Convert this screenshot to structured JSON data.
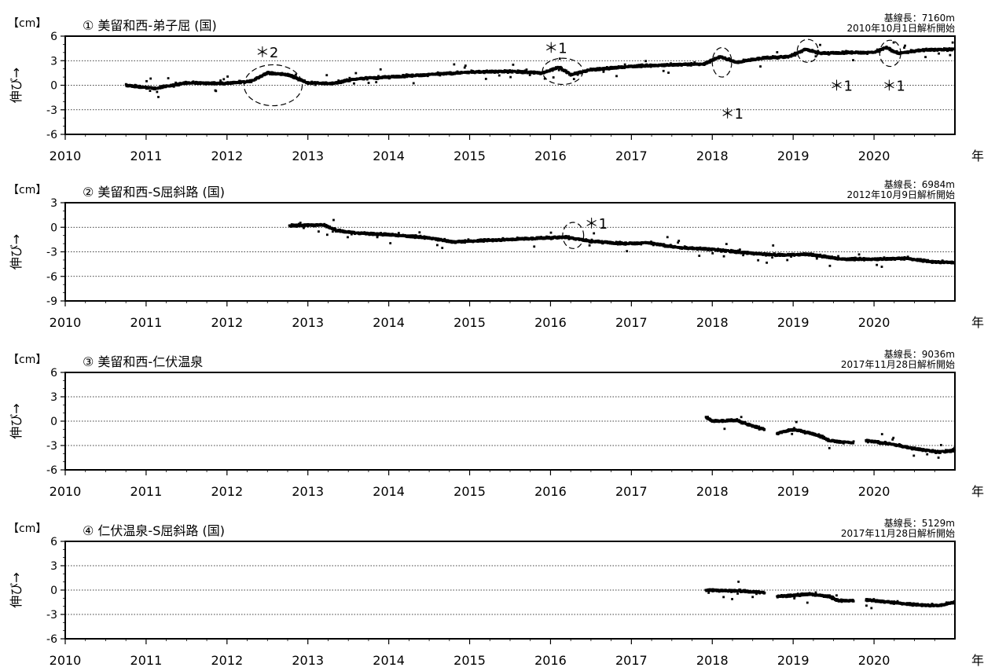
{
  "chart_data": [
    {
      "type": "scatter",
      "title": "① 美留和西-弟子屈 (国)",
      "unit": "【cm】",
      "ylabel": "伸び→",
      "xlabel": "年",
      "baseline": "基線長：7160m",
      "start": "2010年10月1日解析開始",
      "xlim": [
        2010,
        2021
      ],
      "ylim": [
        -6,
        6
      ],
      "yticks": [
        -6,
        -3,
        0,
        3,
        6
      ],
      "xticks": [
        2010,
        2011,
        2012,
        2013,
        2014,
        2015,
        2016,
        2017,
        2018,
        2019,
        2020
      ],
      "grid": [
        -3,
        0,
        3
      ],
      "series_trend": [
        [
          2010.75,
          0.0
        ],
        [
          2011.1,
          -0.4
        ],
        [
          2011.5,
          0.3
        ],
        [
          2012.0,
          0.2
        ],
        [
          2012.3,
          0.5
        ],
        [
          2012.5,
          1.5
        ],
        [
          2012.75,
          1.3
        ],
        [
          2013.0,
          0.3
        ],
        [
          2013.3,
          0.2
        ],
        [
          2013.6,
          0.8
        ],
        [
          2014.0,
          1.0
        ],
        [
          2014.5,
          1.3
        ],
        [
          2015.0,
          1.6
        ],
        [
          2015.5,
          1.7
        ],
        [
          2015.9,
          1.5
        ],
        [
          2016.1,
          2.2
        ],
        [
          2016.25,
          1.3
        ],
        [
          2016.5,
          1.9
        ],
        [
          2017.0,
          2.3
        ],
        [
          2017.5,
          2.5
        ],
        [
          2017.9,
          2.6
        ],
        [
          2018.1,
          3.5
        ],
        [
          2018.3,
          2.8
        ],
        [
          2018.6,
          3.3
        ],
        [
          2018.95,
          3.5
        ],
        [
          2019.15,
          4.4
        ],
        [
          2019.35,
          3.9
        ],
        [
          2019.7,
          4.0
        ],
        [
          2020.0,
          4.0
        ],
        [
          2020.15,
          4.6
        ],
        [
          2020.3,
          3.9
        ],
        [
          2020.6,
          4.3
        ],
        [
          2021.0,
          4.4
        ]
      ],
      "annotations": [
        {
          "text": "＊2",
          "x": 2012.35,
          "y": 4.0
        },
        {
          "text": "＊1",
          "x": 2015.92,
          "y": 4.5
        },
        {
          "text": "＊1",
          "x": 2018.1,
          "y": -3.5
        },
        {
          "text": "＊1",
          "x": 2019.45,
          "y": -0.1
        },
        {
          "text": "＊1",
          "x": 2020.1,
          "y": -0.1
        }
      ],
      "ellipses": [
        {
          "x": 2012.57,
          "y": 0.0,
          "rx": 0.36,
          "ry": 2.5
        },
        {
          "x": 2016.15,
          "y": 1.7,
          "rx": 0.25,
          "ry": 1.6
        },
        {
          "x": 2018.12,
          "y": 2.8,
          "rx": 0.12,
          "ry": 1.8
        },
        {
          "x": 2019.18,
          "y": 4.2,
          "rx": 0.13,
          "ry": 1.4
        },
        {
          "x": 2020.2,
          "y": 3.9,
          "rx": 0.13,
          "ry": 1.6
        }
      ]
    },
    {
      "type": "scatter",
      "title": "② 美留和西-S屈斜路 (国)",
      "unit": "【cm】",
      "ylabel": "伸び→",
      "xlabel": "年",
      "baseline": "基線長：6984m",
      "start": "2012年10月9日解析開始",
      "xlim": [
        2010,
        2021
      ],
      "ylim": [
        -9,
        3
      ],
      "yticks": [
        -9,
        -6,
        -3,
        0,
        3
      ],
      "xticks": [
        2010,
        2011,
        2012,
        2013,
        2014,
        2015,
        2016,
        2017,
        2018,
        2019,
        2020
      ],
      "grid": [
        -6,
        -3,
        0
      ],
      "series_trend": [
        [
          2012.77,
          0.2
        ],
        [
          2013.2,
          0.3
        ],
        [
          2013.35,
          -0.4
        ],
        [
          2013.6,
          -0.7
        ],
        [
          2014.0,
          -0.9
        ],
        [
          2014.5,
          -1.3
        ],
        [
          2014.8,
          -1.8
        ],
        [
          2015.2,
          -1.6
        ],
        [
          2015.7,
          -1.4
        ],
        [
          2016.2,
          -1.2
        ],
        [
          2016.5,
          -1.7
        ],
        [
          2016.9,
          -2.0
        ],
        [
          2017.2,
          -1.9
        ],
        [
          2017.6,
          -2.5
        ],
        [
          2018.0,
          -2.7
        ],
        [
          2018.4,
          -3.1
        ],
        [
          2018.8,
          -3.4
        ],
        [
          2019.2,
          -3.3
        ],
        [
          2019.6,
          -3.9
        ],
        [
          2020.0,
          -3.9
        ],
        [
          2020.4,
          -3.8
        ],
        [
          2020.7,
          -4.2
        ],
        [
          2021.0,
          -4.3
        ]
      ],
      "annotations": [
        {
          "text": "＊1",
          "x": 2016.42,
          "y": 0.4
        }
      ],
      "ellipses": [
        {
          "x": 2016.28,
          "y": -1.0,
          "rx": 0.13,
          "ry": 1.6
        }
      ]
    },
    {
      "type": "scatter",
      "title": "③ 美留和西-仁伏温泉",
      "unit": "【cm】",
      "ylabel": "伸び→",
      "xlabel": "年",
      "baseline": "基線長：9036m",
      "start": "2017年11月28日解析開始",
      "xlim": [
        2010,
        2021
      ],
      "ylim": [
        -6,
        6
      ],
      "yticks": [
        -6,
        -3,
        0,
        3,
        6
      ],
      "xticks": [
        2010,
        2011,
        2012,
        2013,
        2014,
        2015,
        2016,
        2017,
        2018,
        2019,
        2020
      ],
      "grid": [
        -3,
        0,
        3
      ],
      "series_trend": [
        [
          2017.92,
          0.5
        ],
        [
          2018.0,
          0.0
        ],
        [
          2018.3,
          0.1
        ],
        [
          2018.5,
          -0.6
        ],
        [
          2018.65,
          -1.0
        ],
        [
          2018.75,
          null
        ],
        [
          2018.8,
          -1.5
        ],
        [
          2019.0,
          -1.0
        ],
        [
          2019.3,
          -1.7
        ],
        [
          2019.45,
          -2.4
        ],
        [
          2019.75,
          -2.7
        ],
        [
          2019.8,
          null
        ],
        [
          2019.9,
          -2.4
        ],
        [
          2020.2,
          -2.8
        ],
        [
          2020.5,
          -3.4
        ],
        [
          2020.8,
          -3.8
        ],
        [
          2021.0,
          -3.6
        ]
      ],
      "annotations": [],
      "ellipses": []
    },
    {
      "type": "scatter",
      "title": "④ 仁伏温泉-S屈斜路 (国)",
      "unit": "【cm】",
      "ylabel": "伸び→",
      "xlabel": "年",
      "baseline": "基線長：5129m",
      "start": "2017年11月28日解析開始",
      "xlim": [
        2010,
        2021
      ],
      "ylim": [
        -6,
        6
      ],
      "yticks": [
        -6,
        -3,
        0,
        3,
        6
      ],
      "xticks": [
        2010,
        2011,
        2012,
        2013,
        2014,
        2015,
        2016,
        2017,
        2018,
        2019,
        2020
      ],
      "grid": [
        -3,
        0,
        3
      ],
      "series_trend": [
        [
          2017.92,
          0.0
        ],
        [
          2018.3,
          -0.1
        ],
        [
          2018.65,
          -0.3
        ],
        [
          2018.75,
          null
        ],
        [
          2018.8,
          -0.8
        ],
        [
          2019.2,
          -0.5
        ],
        [
          2019.45,
          -0.8
        ],
        [
          2019.55,
          -1.3
        ],
        [
          2019.75,
          -1.3
        ],
        [
          2019.8,
          null
        ],
        [
          2019.9,
          -1.2
        ],
        [
          2020.2,
          -1.5
        ],
        [
          2020.5,
          -1.8
        ],
        [
          2020.8,
          -1.9
        ],
        [
          2021.0,
          -1.5
        ]
      ],
      "annotations": [],
      "ellipses": []
    }
  ]
}
